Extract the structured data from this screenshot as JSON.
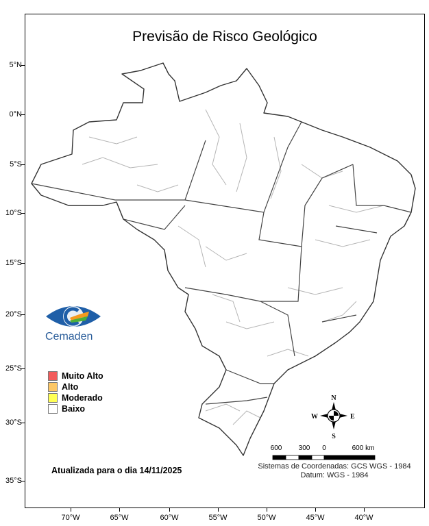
{
  "title": "Previsão de Risco Geológico",
  "lat_labels": [
    "5°N",
    "0°N",
    "5°S",
    "10°S",
    "15°S",
    "20°S",
    "25°S",
    "30°S",
    "35°S"
  ],
  "lon_labels": [
    "70°W",
    "65°W",
    "60°W",
    "55°W",
    "50°W",
    "45°W",
    "40°W"
  ],
  "logo": {
    "text": "Cemaden",
    "colors": [
      "#1f5fa8",
      "#f39a1e",
      "#4caf3a"
    ]
  },
  "legend": [
    {
      "label": "Muito Alto",
      "color": "#f25c5c"
    },
    {
      "label": "Alto",
      "color": "#fcc766"
    },
    {
      "label": "Moderado",
      "color": "#ffff55"
    },
    {
      "label": "Baixo",
      "color": "#ffffff"
    }
  ],
  "updated": "Atualizada para o dia 14/11/2025",
  "compass": {
    "n": "N",
    "s": "S",
    "e": "E",
    "w": "W"
  },
  "scale": {
    "labels": [
      "600",
      "300",
      "0",
      "600 km"
    ]
  },
  "crs": {
    "line1": "Sistemas de Coordenadas: GCS WGS - 1984",
    "line2": "Datum: WGS - 1984"
  },
  "colors": {
    "country_border": "#333333",
    "municipal_border": "#b5b5b5"
  }
}
